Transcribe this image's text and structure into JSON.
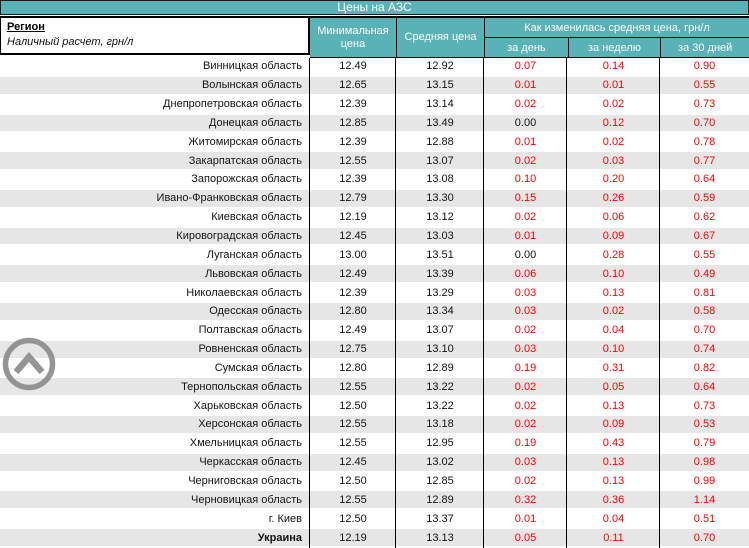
{
  "title": "Цены на АЗС",
  "header": {
    "region_label": "Регион",
    "region_sub": "Наличный расчет, грн/л",
    "col_min": "Минимальная цена",
    "col_avg": "Средняя цена",
    "change_group": "Как изменилась средняя цена, грн/л",
    "col_day": "за день",
    "col_week": "за неделю",
    "col_30": "за 30 дней"
  },
  "colors": {
    "teal": "#58b2b6",
    "stripe": "#e6e6e6",
    "red": "#ff0000",
    "border": "#000000",
    "icon_gray": "#8d8d8d"
  },
  "icons": {
    "scroll_top": "chevron-up-circle-icon"
  },
  "rows": [
    {
      "region": "Винницкая область",
      "min": "12.49",
      "avg": "12.92",
      "day": "0.07",
      "week": "0.14",
      "d30": "0.90",
      "bold": false
    },
    {
      "region": "Волынская область",
      "min": "12.65",
      "avg": "13.15",
      "day": "0.01",
      "week": "0.01",
      "d30": "0.55",
      "bold": false
    },
    {
      "region": "Днепропетровская область",
      "min": "12.39",
      "avg": "13.14",
      "day": "0.02",
      "week": "0.02",
      "d30": "0.73",
      "bold": false
    },
    {
      "region": "Донецкая область",
      "min": "12.85",
      "avg": "13.49",
      "day": "0.00",
      "week": "0.12",
      "d30": "0.70",
      "bold": false
    },
    {
      "region": "Житомирская область",
      "min": "12.39",
      "avg": "12.88",
      "day": "0.01",
      "week": "0.02",
      "d30": "0.78",
      "bold": false
    },
    {
      "region": "Закарпатская область",
      "min": "12.55",
      "avg": "13.07",
      "day": "0.02",
      "week": "0.03",
      "d30": "0.77",
      "bold": false
    },
    {
      "region": "Запорожская область",
      "min": "12.39",
      "avg": "13.08",
      "day": "0.10",
      "week": "0.20",
      "d30": "0.64",
      "bold": false
    },
    {
      "region": "Ивано-Франковская область",
      "min": "12.79",
      "avg": "13.30",
      "day": "0.15",
      "week": "0.26",
      "d30": "0.59",
      "bold": false
    },
    {
      "region": "Киевская область",
      "min": "12.19",
      "avg": "13.12",
      "day": "0.02",
      "week": "0.06",
      "d30": "0.62",
      "bold": false
    },
    {
      "region": "Кировоградская область",
      "min": "12.45",
      "avg": "13.03",
      "day": "0.01",
      "week": "0.09",
      "d30": "0.67",
      "bold": false
    },
    {
      "region": "Луганская область",
      "min": "13.00",
      "avg": "13.51",
      "day": "0.00",
      "week": "0.28",
      "d30": "0.55",
      "bold": false
    },
    {
      "region": "Львовская область",
      "min": "12.49",
      "avg": "13.39",
      "day": "0.06",
      "week": "0.10",
      "d30": "0.49",
      "bold": false
    },
    {
      "region": "Николаевская область",
      "min": "12.39",
      "avg": "13.29",
      "day": "0.03",
      "week": "0.13",
      "d30": "0.81",
      "bold": false
    },
    {
      "region": "Одесская область",
      "min": "12.80",
      "avg": "13.34",
      "day": "0.03",
      "week": "0.02",
      "d30": "0.58",
      "bold": false
    },
    {
      "region": "Полтавская область",
      "min": "12.49",
      "avg": "13.07",
      "day": "0.02",
      "week": "0.04",
      "d30": "0.70",
      "bold": false
    },
    {
      "region": "Ровненская область",
      "min": "12.75",
      "avg": "13.10",
      "day": "0.03",
      "week": "0.10",
      "d30": "0.74",
      "bold": false
    },
    {
      "region": "Сумская область",
      "min": "12.80",
      "avg": "12.89",
      "day": "0.19",
      "week": "0.31",
      "d30": "0.82",
      "bold": false
    },
    {
      "region": "Тернопольская область",
      "min": "12.55",
      "avg": "13.22",
      "day": "0.02",
      "week": "0.05",
      "d30": "0.64",
      "bold": false
    },
    {
      "region": "Харьковская область",
      "min": "12.50",
      "avg": "13.22",
      "day": "0.02",
      "week": "0.13",
      "d30": "0.73",
      "bold": false
    },
    {
      "region": "Херсонская область",
      "min": "12.55",
      "avg": "13.18",
      "day": "0.02",
      "week": "0.09",
      "d30": "0.53",
      "bold": false
    },
    {
      "region": "Хмельницкая область",
      "min": "12.55",
      "avg": "12.95",
      "day": "0.19",
      "week": "0.43",
      "d30": "0.79",
      "bold": false
    },
    {
      "region": "Черкасская область",
      "min": "12.45",
      "avg": "13.02",
      "day": "0.03",
      "week": "0.13",
      "d30": "0.98",
      "bold": false
    },
    {
      "region": "Черниговская область",
      "min": "12.50",
      "avg": "12.85",
      "day": "0.02",
      "week": "0.13",
      "d30": "0.99",
      "bold": false
    },
    {
      "region": "Черновицкая область",
      "min": "12.55",
      "avg": "12.89",
      "day": "0.32",
      "week": "0.36",
      "d30": "1.14",
      "bold": false
    },
    {
      "region": "г. Киев",
      "min": "12.50",
      "avg": "13.37",
      "day": "0.01",
      "week": "0.04",
      "d30": "0.51",
      "bold": false
    },
    {
      "region": "Украина",
      "min": "12.19",
      "avg": "13.13",
      "day": "0.05",
      "week": "0.11",
      "d30": "0.70",
      "bold": true
    }
  ]
}
